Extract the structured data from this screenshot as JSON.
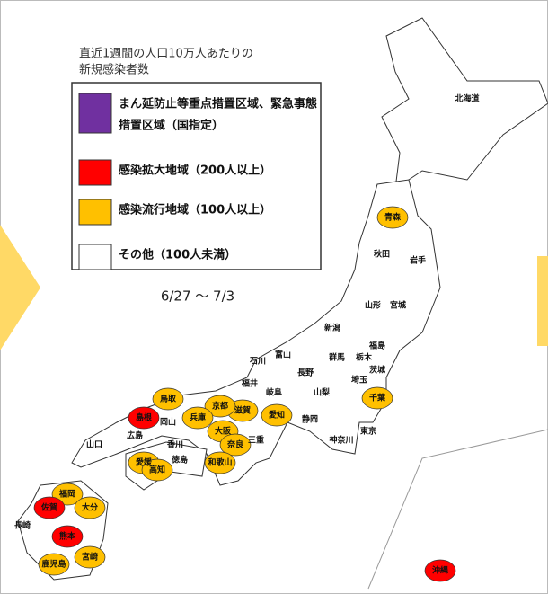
{
  "legend": {
    "title": [
      "直近1週間の人口10万人あたりの",
      "新規感染者数"
    ],
    "items": [
      {
        "label": [
          "まん延防止等重点措置区域、緊急事態",
          "措置区域（国指定）"
        ],
        "color": "#7030a0"
      },
      {
        "label": [
          "感染拡大地域（200人以上）"
        ],
        "color": "#ff0000"
      },
      {
        "label": [
          "感染流行地域（100人以上）"
        ],
        "color": "#ffc000"
      },
      {
        "label": [
          "その他（100人未満）"
        ],
        "color": "#ffffff"
      }
    ]
  },
  "period": "6/27 〜 7/3",
  "prefectures": [
    {
      "name": "北海道",
      "level": 3
    },
    {
      "name": "青森",
      "level": 2
    },
    {
      "name": "秋田",
      "level": 3
    },
    {
      "name": "岩手",
      "level": 3
    },
    {
      "name": "山形",
      "level": 3
    },
    {
      "name": "宮城",
      "level": 3
    },
    {
      "name": "新潟",
      "level": 3
    },
    {
      "name": "福島",
      "level": 3
    },
    {
      "name": "石川",
      "level": 3
    },
    {
      "name": "富山",
      "level": 3
    },
    {
      "name": "群馬",
      "level": 3
    },
    {
      "name": "栃木",
      "level": 3
    },
    {
      "name": "茨城",
      "level": 3
    },
    {
      "name": "長野",
      "level": 3
    },
    {
      "name": "福井",
      "level": 3
    },
    {
      "name": "埼玉",
      "level": 3
    },
    {
      "name": "岐阜",
      "level": 3
    },
    {
      "name": "山梨",
      "level": 3
    },
    {
      "name": "千葉",
      "level": 2
    },
    {
      "name": "東京",
      "level": 3
    },
    {
      "name": "神奈川",
      "level": 3
    },
    {
      "name": "静岡",
      "level": 3
    },
    {
      "name": "愛知",
      "level": 2
    },
    {
      "name": "滋賀",
      "level": 2
    },
    {
      "name": "京都",
      "level": 2
    },
    {
      "name": "兵庫",
      "level": 2
    },
    {
      "name": "鳥取",
      "level": 2
    },
    {
      "name": "島根",
      "level": 1
    },
    {
      "name": "岡山",
      "level": 3
    },
    {
      "name": "広島",
      "level": 3
    },
    {
      "name": "山口",
      "level": 3
    },
    {
      "name": "大阪",
      "level": 2
    },
    {
      "name": "奈良",
      "level": 2
    },
    {
      "name": "三重",
      "level": 3
    },
    {
      "name": "和歌山",
      "level": 2
    },
    {
      "name": "香川",
      "level": 3
    },
    {
      "name": "徳島",
      "level": 3
    },
    {
      "name": "愛媛",
      "level": 2
    },
    {
      "name": "高知",
      "level": 2
    },
    {
      "name": "福岡",
      "level": 2
    },
    {
      "name": "佐賀",
      "level": 1
    },
    {
      "name": "長崎",
      "level": 3
    },
    {
      "name": "大分",
      "level": 2
    },
    {
      "name": "熊本",
      "level": 1
    },
    {
      "name": "宮崎",
      "level": 2
    },
    {
      "name": "鹿児島",
      "level": 2
    },
    {
      "name": "沖縄",
      "level": 1
    }
  ]
}
